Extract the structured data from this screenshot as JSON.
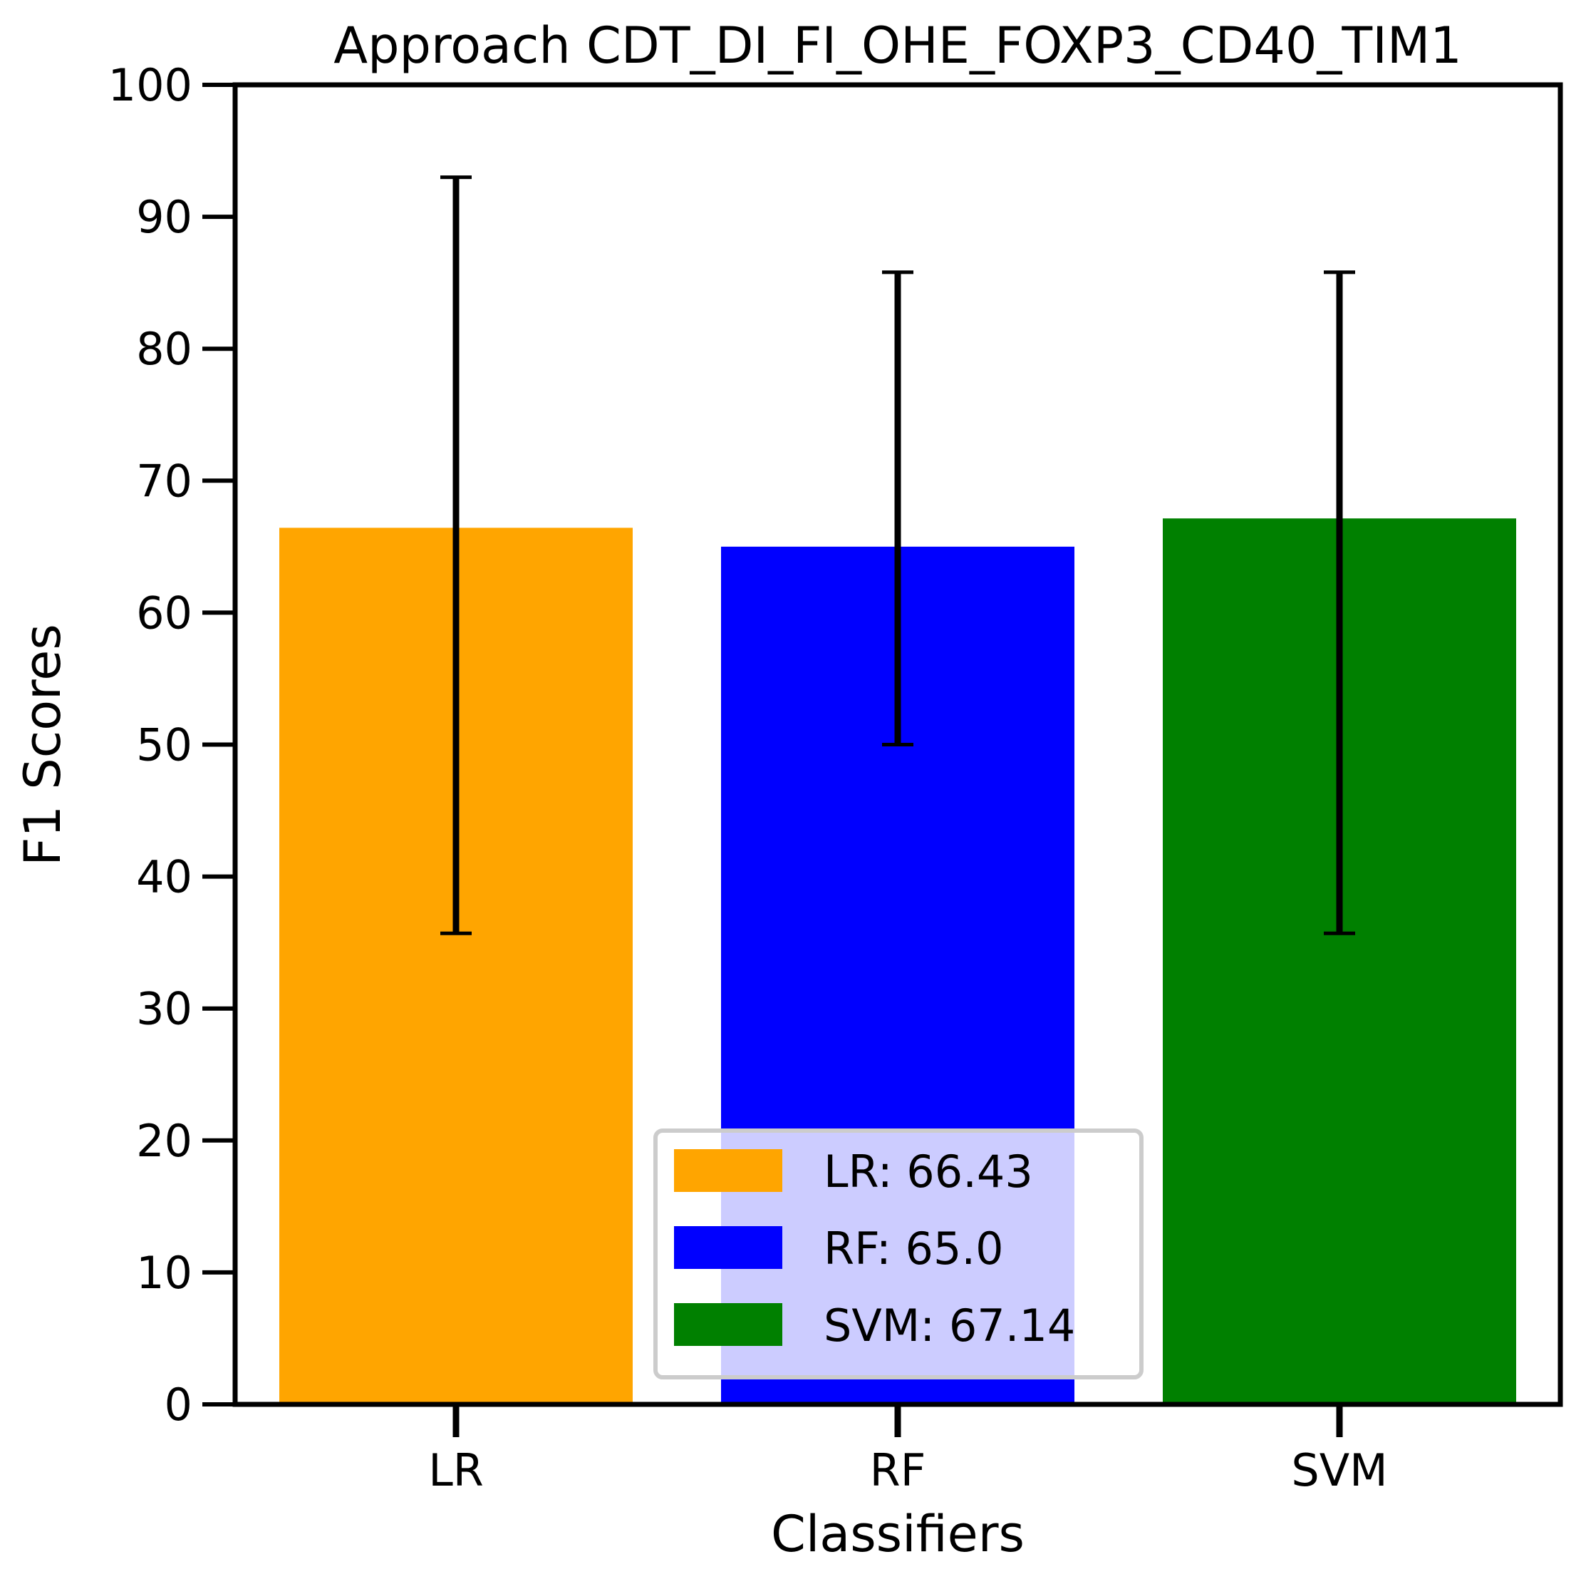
{
  "chart_data": {
    "type": "bar",
    "title": "Approach CDT_DI_FI_OHE_FOXP3_CD40_TIM1",
    "xlabel": "Classifiers",
    "ylabel": "F1 Scores",
    "ylim": [
      0,
      100
    ],
    "yticks": [
      "0",
      "10",
      "20",
      "30",
      "40",
      "50",
      "60",
      "70",
      "80",
      "90",
      "100"
    ],
    "categories": [
      "LR",
      "RF",
      "SVM"
    ],
    "values": [
      66.43,
      65.0,
      67.14
    ],
    "error_low": [
      35.7,
      50.0,
      35.7
    ],
    "error_high": [
      93.0,
      85.8,
      85.8
    ],
    "colors": [
      "#FFA500",
      "#0000FF",
      "#008000"
    ],
    "grid": false,
    "legend": {
      "placement": "lower-center",
      "entries": [
        "LR: 66.43",
        "RF: 65.0",
        "SVM: 67.14"
      ]
    }
  }
}
